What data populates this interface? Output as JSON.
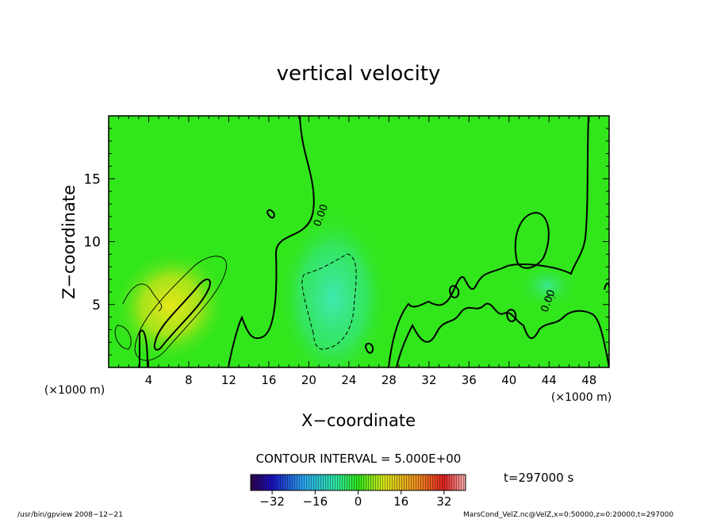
{
  "chart_data": {
    "type": "heatmap",
    "title": "vertical velocity",
    "xlabel": "X−coordinate",
    "ylabel": "Z−coordinate",
    "x_unit": "(×1000 m)",
    "x_unit_right": "(×1000 m)",
    "xlim": [
      0,
      50
    ],
    "ylim": [
      0,
      20
    ],
    "x_ticks": [
      4,
      8,
      12,
      16,
      20,
      24,
      28,
      32,
      36,
      40,
      44,
      48
    ],
    "y_ticks": [
      5,
      10,
      15
    ],
    "contour_interval": "CONTOUR INTERVAL = 5.000E+00",
    "contour_labels": [
      {
        "text": "0.00",
        "x": 21.5,
        "y": 12
      },
      {
        "text": "0.00",
        "x": 44.2,
        "y": 5.2
      }
    ],
    "colorbar": {
      "range": [
        -40,
        40
      ],
      "ticks": [
        "−32",
        "−16",
        "0",
        "16",
        "32"
      ],
      "tick_values": [
        -32,
        -16,
        0,
        16,
        32
      ]
    },
    "features": [
      {
        "kind": "updraft",
        "x": 7,
        "z": 4.5,
        "value": 10
      },
      {
        "kind": "downdraft",
        "x": 22,
        "z": 5,
        "value": -5
      }
    ]
  },
  "time_label": "t=297000 s",
  "footer_left": "/usr/bin/gpview   2008−12−21",
  "footer_right": "MarsCond_VelZ.nc@VelZ,x=0:50000,z=0:20000,t=297000",
  "colors": {
    "background_field": "#31e61b",
    "updraft": "#d4e41c",
    "downdraft": "#3ae8a0"
  }
}
